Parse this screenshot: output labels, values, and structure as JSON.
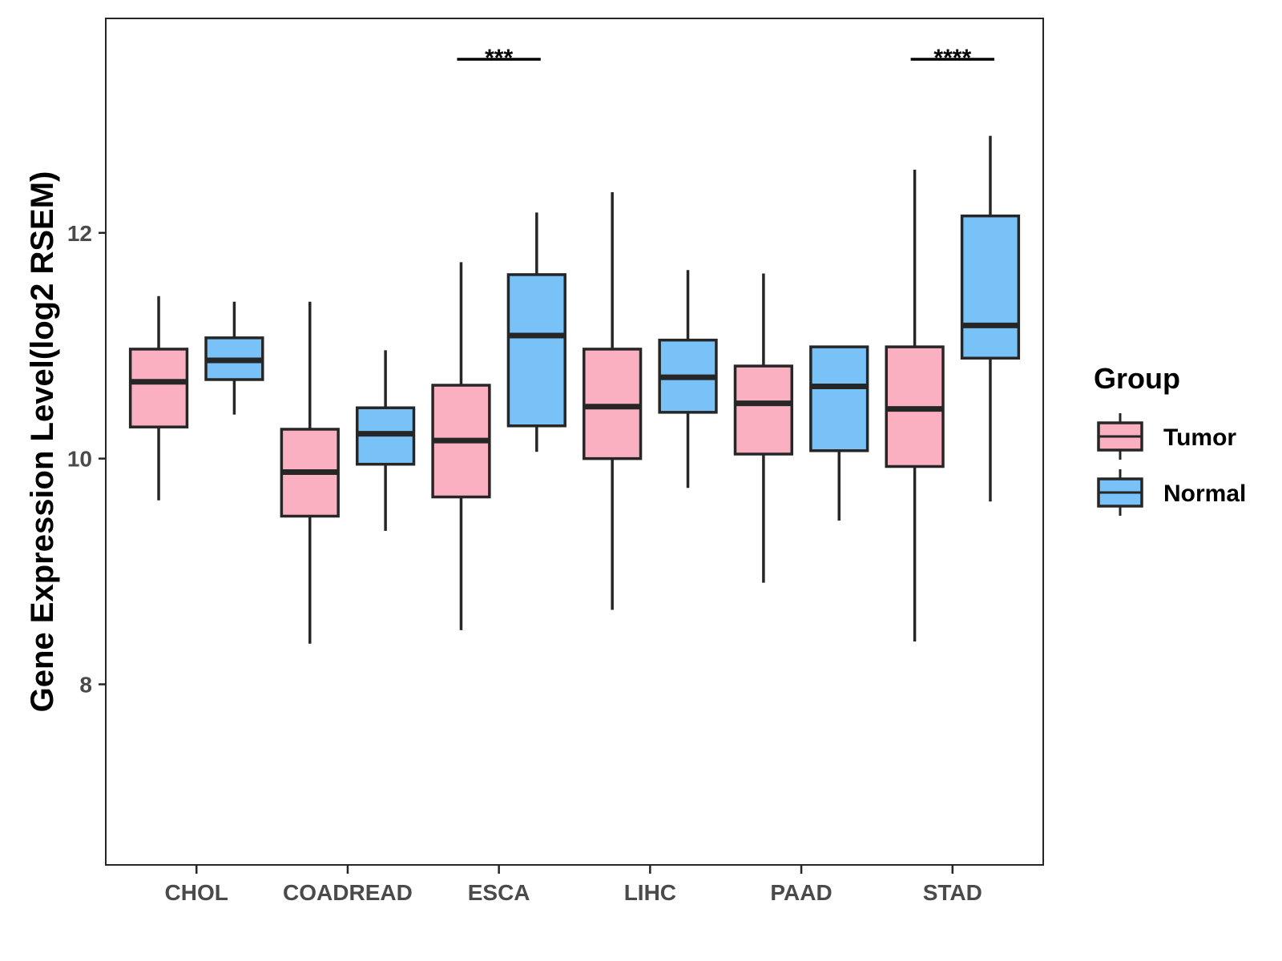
{
  "chart_data": {
    "type": "boxplot",
    "ylabel": "Gene Expression Level(log2 RSEM)",
    "xlabel": "",
    "ylim": [
      6.4,
      13.9
    ],
    "yticks": [
      8,
      10,
      12
    ],
    "grid": false,
    "categories": [
      "CHOL",
      "COADREAD",
      "ESCA",
      "LIHC",
      "PAAD",
      "STAD"
    ],
    "legend": {
      "title": "Group",
      "position": "right",
      "entries": [
        "Tumor",
        "Normal"
      ]
    },
    "series": [
      {
        "name": "Tumor",
        "color": "#FBB0C1",
        "boxes": [
          {
            "min": 9.63,
            "q1": 10.28,
            "median": 10.68,
            "q3": 10.97,
            "max": 11.44
          },
          {
            "min": 8.36,
            "q1": 9.49,
            "median": 9.88,
            "q3": 10.26,
            "max": 11.39
          },
          {
            "min": 8.48,
            "q1": 9.66,
            "median": 10.16,
            "q3": 10.65,
            "max": 11.74
          },
          {
            "min": 8.66,
            "q1": 10.0,
            "median": 10.46,
            "q3": 10.97,
            "max": 12.36
          },
          {
            "min": 8.9,
            "q1": 10.04,
            "median": 10.49,
            "q3": 10.82,
            "max": 11.64
          },
          {
            "min": 8.38,
            "q1": 9.93,
            "median": 10.44,
            "q3": 10.99,
            "max": 12.56
          }
        ]
      },
      {
        "name": "Normal",
        "color": "#78C2F8",
        "boxes": [
          {
            "min": 10.39,
            "q1": 10.7,
            "median": 10.87,
            "q3": 11.07,
            "max": 11.39
          },
          {
            "min": 9.36,
            "q1": 9.95,
            "median": 10.22,
            "q3": 10.45,
            "max": 10.96
          },
          {
            "min": 10.06,
            "q1": 10.29,
            "median": 11.09,
            "q3": 11.63,
            "max": 12.18
          },
          {
            "min": 9.74,
            "q1": 10.41,
            "median": 10.72,
            "q3": 11.05,
            "max": 11.67
          },
          {
            "min": 9.45,
            "q1": 10.07,
            "median": 10.64,
            "q3": 10.99,
            "max": 10.99
          },
          {
            "min": 9.62,
            "q1": 10.89,
            "median": 11.18,
            "q3": 12.15,
            "max": 12.86
          }
        ]
      }
    ],
    "significance": [
      {
        "category": "ESCA",
        "label": "***"
      },
      {
        "category": "STAD",
        "label": "****"
      }
    ]
  }
}
